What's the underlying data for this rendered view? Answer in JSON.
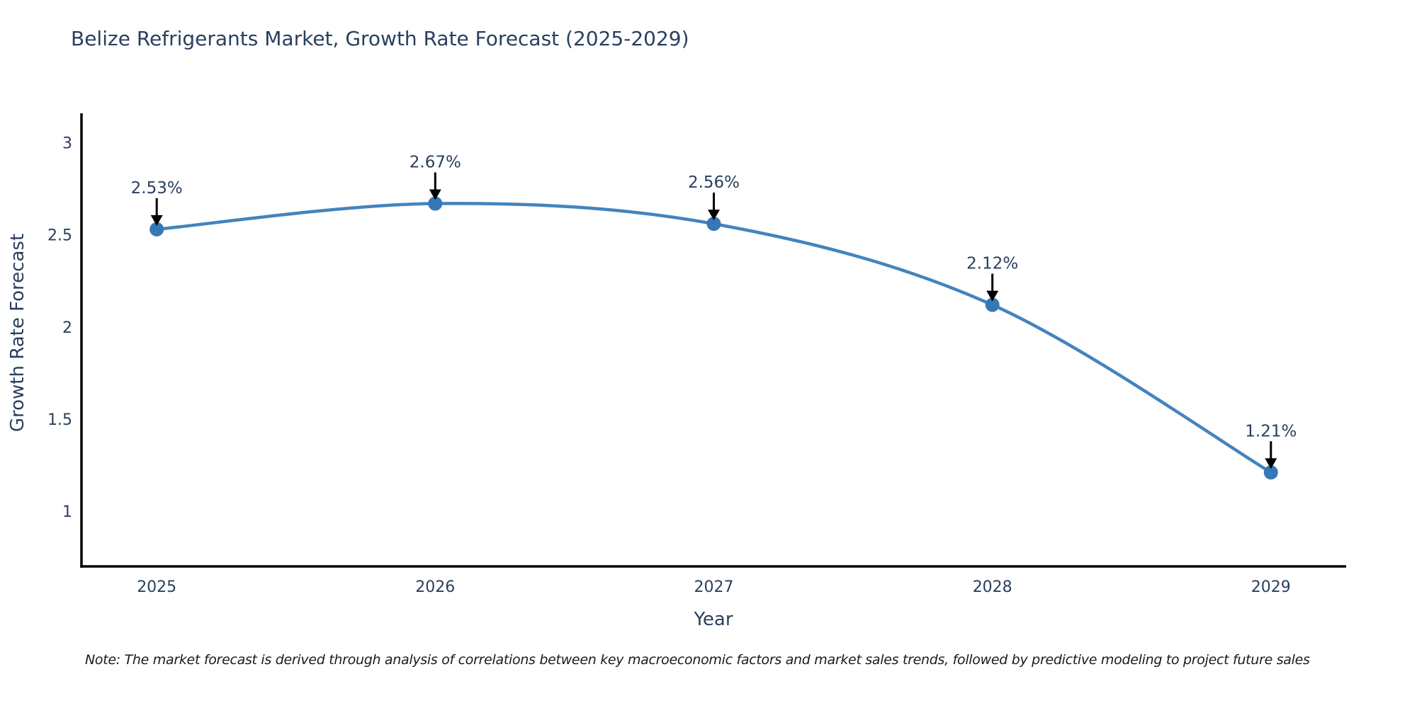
{
  "note": "Note: The market forecast is derived through analysis of correlations between key macroeconomic factors and market sales trends, followed by predictive modeling to project future sales",
  "chart_data": {
    "type": "line",
    "line_shape": "spline",
    "title": "Belize Refrigerants Market, Growth Rate Forecast (2025-2029)",
    "xlabel": "Year",
    "ylabel": "Growth Rate Forecast",
    "x": [
      2025,
      2026,
      2027,
      2028,
      2029
    ],
    "series": [
      {
        "name": "Growth Rate Forecast",
        "values": [
          2.53,
          2.67,
          2.56,
          2.12,
          1.21
        ]
      }
    ],
    "point_labels": [
      "2.53%",
      "2.67%",
      "2.56%",
      "2.12%",
      "1.21%"
    ],
    "xticks": [
      "2025",
      "2026",
      "2027",
      "2028",
      "2029"
    ],
    "yticks": [
      1,
      1.5,
      2,
      2.5,
      3
    ],
    "ytick_labels": [
      "1",
      "1.5",
      "2",
      "2.5",
      "3"
    ],
    "xlim": [
      2024.73,
      2029.27
    ],
    "ylim": [
      0.7,
      3.16
    ],
    "grid": false,
    "legend": "none",
    "colors": {
      "line": "#4384bd",
      "marker": "#3677b6",
      "arrow": "#000000",
      "axis": "#000000",
      "label_text": "#2a3f5f",
      "note_text": "#1a1a1a",
      "background": "#ffffff"
    }
  }
}
